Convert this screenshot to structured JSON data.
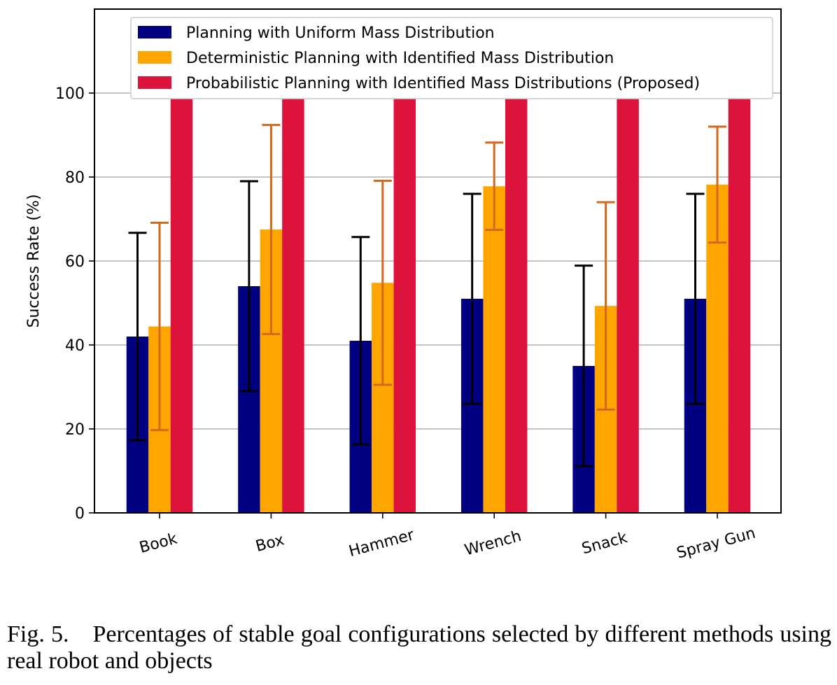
{
  "chart_data": {
    "type": "bar",
    "title": "",
    "xlabel": "",
    "ylabel": "Success Rate (%)",
    "ylim": [
      0,
      120
    ],
    "yticks": [
      0,
      20,
      40,
      60,
      80,
      100
    ],
    "grid": "horizontal",
    "legend_position": "top",
    "categories": [
      "Book",
      "Box",
      "Hammer",
      "Wrench",
      "Snack",
      "Spray Gun"
    ],
    "series": [
      {
        "name": "Planning with Uniform Mass Distribution",
        "color": "#000080",
        "error_color": "#000000",
        "values": [
          42,
          54,
          41,
          51,
          35,
          51
        ],
        "errors": [
          24.7,
          25,
          24.7,
          25,
          23.9,
          25
        ]
      },
      {
        "name": "Deterministic Planning with Identified Mass Distribution",
        "color": "#FFA500",
        "error_color": "#D2691E",
        "values": [
          44.4,
          67.5,
          54.8,
          77.8,
          49.3,
          78.2
        ],
        "errors": [
          24.7,
          24.9,
          24.3,
          10.4,
          24.7,
          13.8
        ]
      },
      {
        "name": "Probabilistic Planning with Identified Mass Distributions (Proposed)",
        "color": "#DC143C",
        "error_color": "#000000",
        "values": [
          100,
          100,
          100,
          100,
          100,
          100
        ],
        "errors": [
          0,
          0,
          0,
          0,
          0,
          0
        ]
      }
    ]
  },
  "caption": {
    "fig_number": "Fig. 5.",
    "text": "Percentages of stable goal configurations selected by different methods using real robot and objects"
  }
}
